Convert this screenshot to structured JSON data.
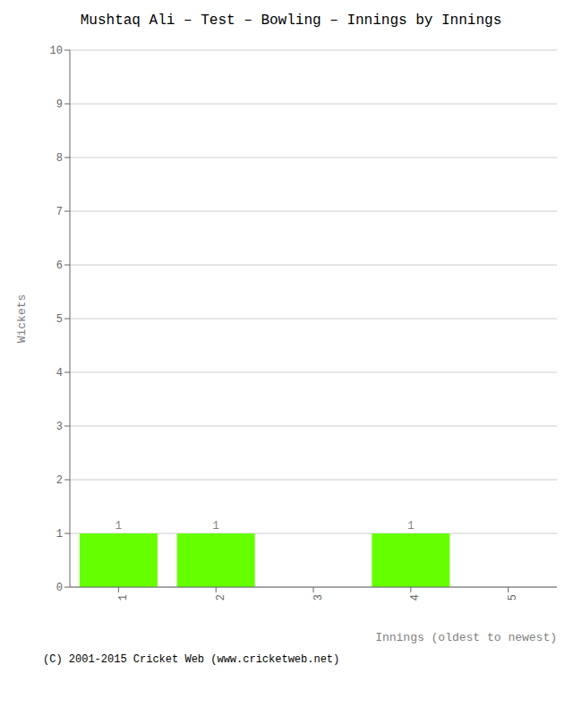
{
  "chart_data": {
    "type": "bar",
    "title": "Mushtaq Ali – Test – Bowling – Innings by Innings",
    "xlabel": "Innings (oldest to newest)",
    "ylabel": "Wickets",
    "categories": [
      1,
      2,
      3,
      4,
      5
    ],
    "values": [
      1,
      1,
      0,
      1,
      0
    ],
    "color": "#66ff00",
    "ylim": [
      0,
      10
    ],
    "yticks": [
      0,
      1,
      2,
      3,
      4,
      5,
      6,
      7,
      8,
      9,
      10
    ],
    "grid": true,
    "data_labels": true,
    "annotations": [
      "(C) 2001-2015 Cricket Web (www.cricketweb.net)"
    ]
  }
}
